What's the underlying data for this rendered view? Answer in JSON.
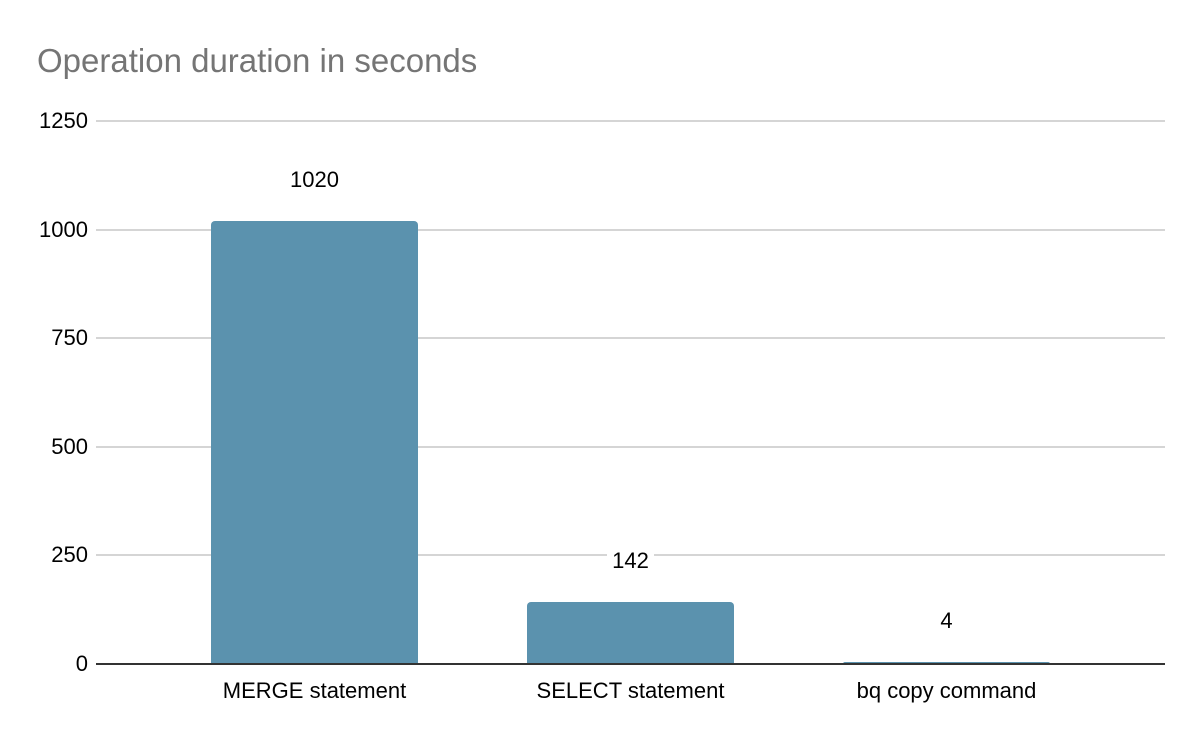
{
  "chart_data": {
    "type": "bar",
    "title": "Operation duration in seconds",
    "categories": [
      "MERGE statement",
      "SELECT statement",
      "bq copy command"
    ],
    "values": [
      1020,
      142,
      4
    ],
    "value_labels": [
      "1020",
      "142",
      "4"
    ],
    "xlabel": "",
    "ylabel": "",
    "ylim": [
      0,
      1250
    ],
    "yticks": [
      0,
      250,
      500,
      750,
      1000,
      1250
    ],
    "grid": true,
    "legend_position": "none",
    "colors": {
      "bar": "#5b92ae",
      "title_text": "#757575",
      "gridline": "#d5d5d5",
      "axis_line": "#333333",
      "label_text": "#000000",
      "background": "#ffffff"
    }
  }
}
